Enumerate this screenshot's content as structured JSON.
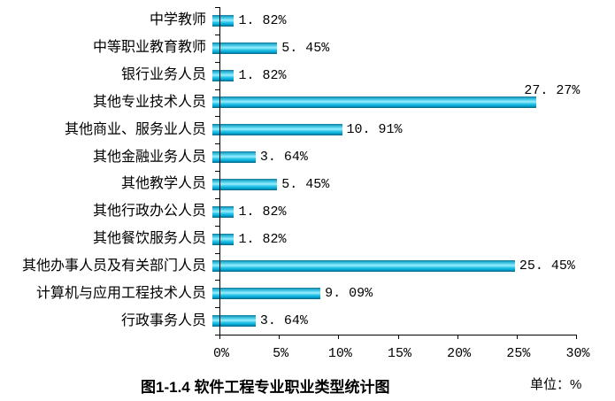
{
  "chart_data": {
    "type": "bar",
    "orientation": "horizontal",
    "title": "图1-1.4 软件工程专业职业类型统计图",
    "unit_label": "单位：%",
    "xlim": [
      0,
      30
    ],
    "x_tick_labels": [
      "0%",
      "5%",
      "10%",
      "15%",
      "20%",
      "25%",
      "30%"
    ],
    "gridlines": false,
    "legend": "none",
    "bar_color_main": "#00b2dd",
    "bar_color_highlight": "#9deefc",
    "bar_color_edge": "#0c6281",
    "points": [
      {
        "category": "中学教师",
        "value": 1.82,
        "value_label": "1. 82%",
        "label_position": "right"
      },
      {
        "category": "中等职业教育教师",
        "value": 5.45,
        "value_label": "5. 45%",
        "label_position": "right"
      },
      {
        "category": "银行业务人员",
        "value": 1.82,
        "value_label": "1. 82%",
        "label_position": "right"
      },
      {
        "category": "其他专业技术人员",
        "value": 27.27,
        "value_label": "27. 27%",
        "label_position": "above"
      },
      {
        "category": "其他商业、服务业人员",
        "value": 10.91,
        "value_label": "10. 91%",
        "label_position": "right"
      },
      {
        "category": "其他金融业务人员",
        "value": 3.64,
        "value_label": "3. 64%",
        "label_position": "right"
      },
      {
        "category": "其他教学人员",
        "value": 5.45,
        "value_label": "5. 45%",
        "label_position": "right"
      },
      {
        "category": "其他行政办公人员",
        "value": 1.82,
        "value_label": "1. 82%",
        "label_position": "right"
      },
      {
        "category": "其他餐饮服务人员",
        "value": 1.82,
        "value_label": "1. 82%",
        "label_position": "right"
      },
      {
        "category": "其他办事人员及有关部门人员",
        "value": 25.45,
        "value_label": "25. 45%",
        "label_position": "right"
      },
      {
        "category": "计算机与应用工程技术人员",
        "value": 9.09,
        "value_label": "9. 09%",
        "label_position": "right"
      },
      {
        "category": "行政事务人员",
        "value": 3.64,
        "value_label": "3. 64%",
        "label_position": "right"
      }
    ]
  }
}
